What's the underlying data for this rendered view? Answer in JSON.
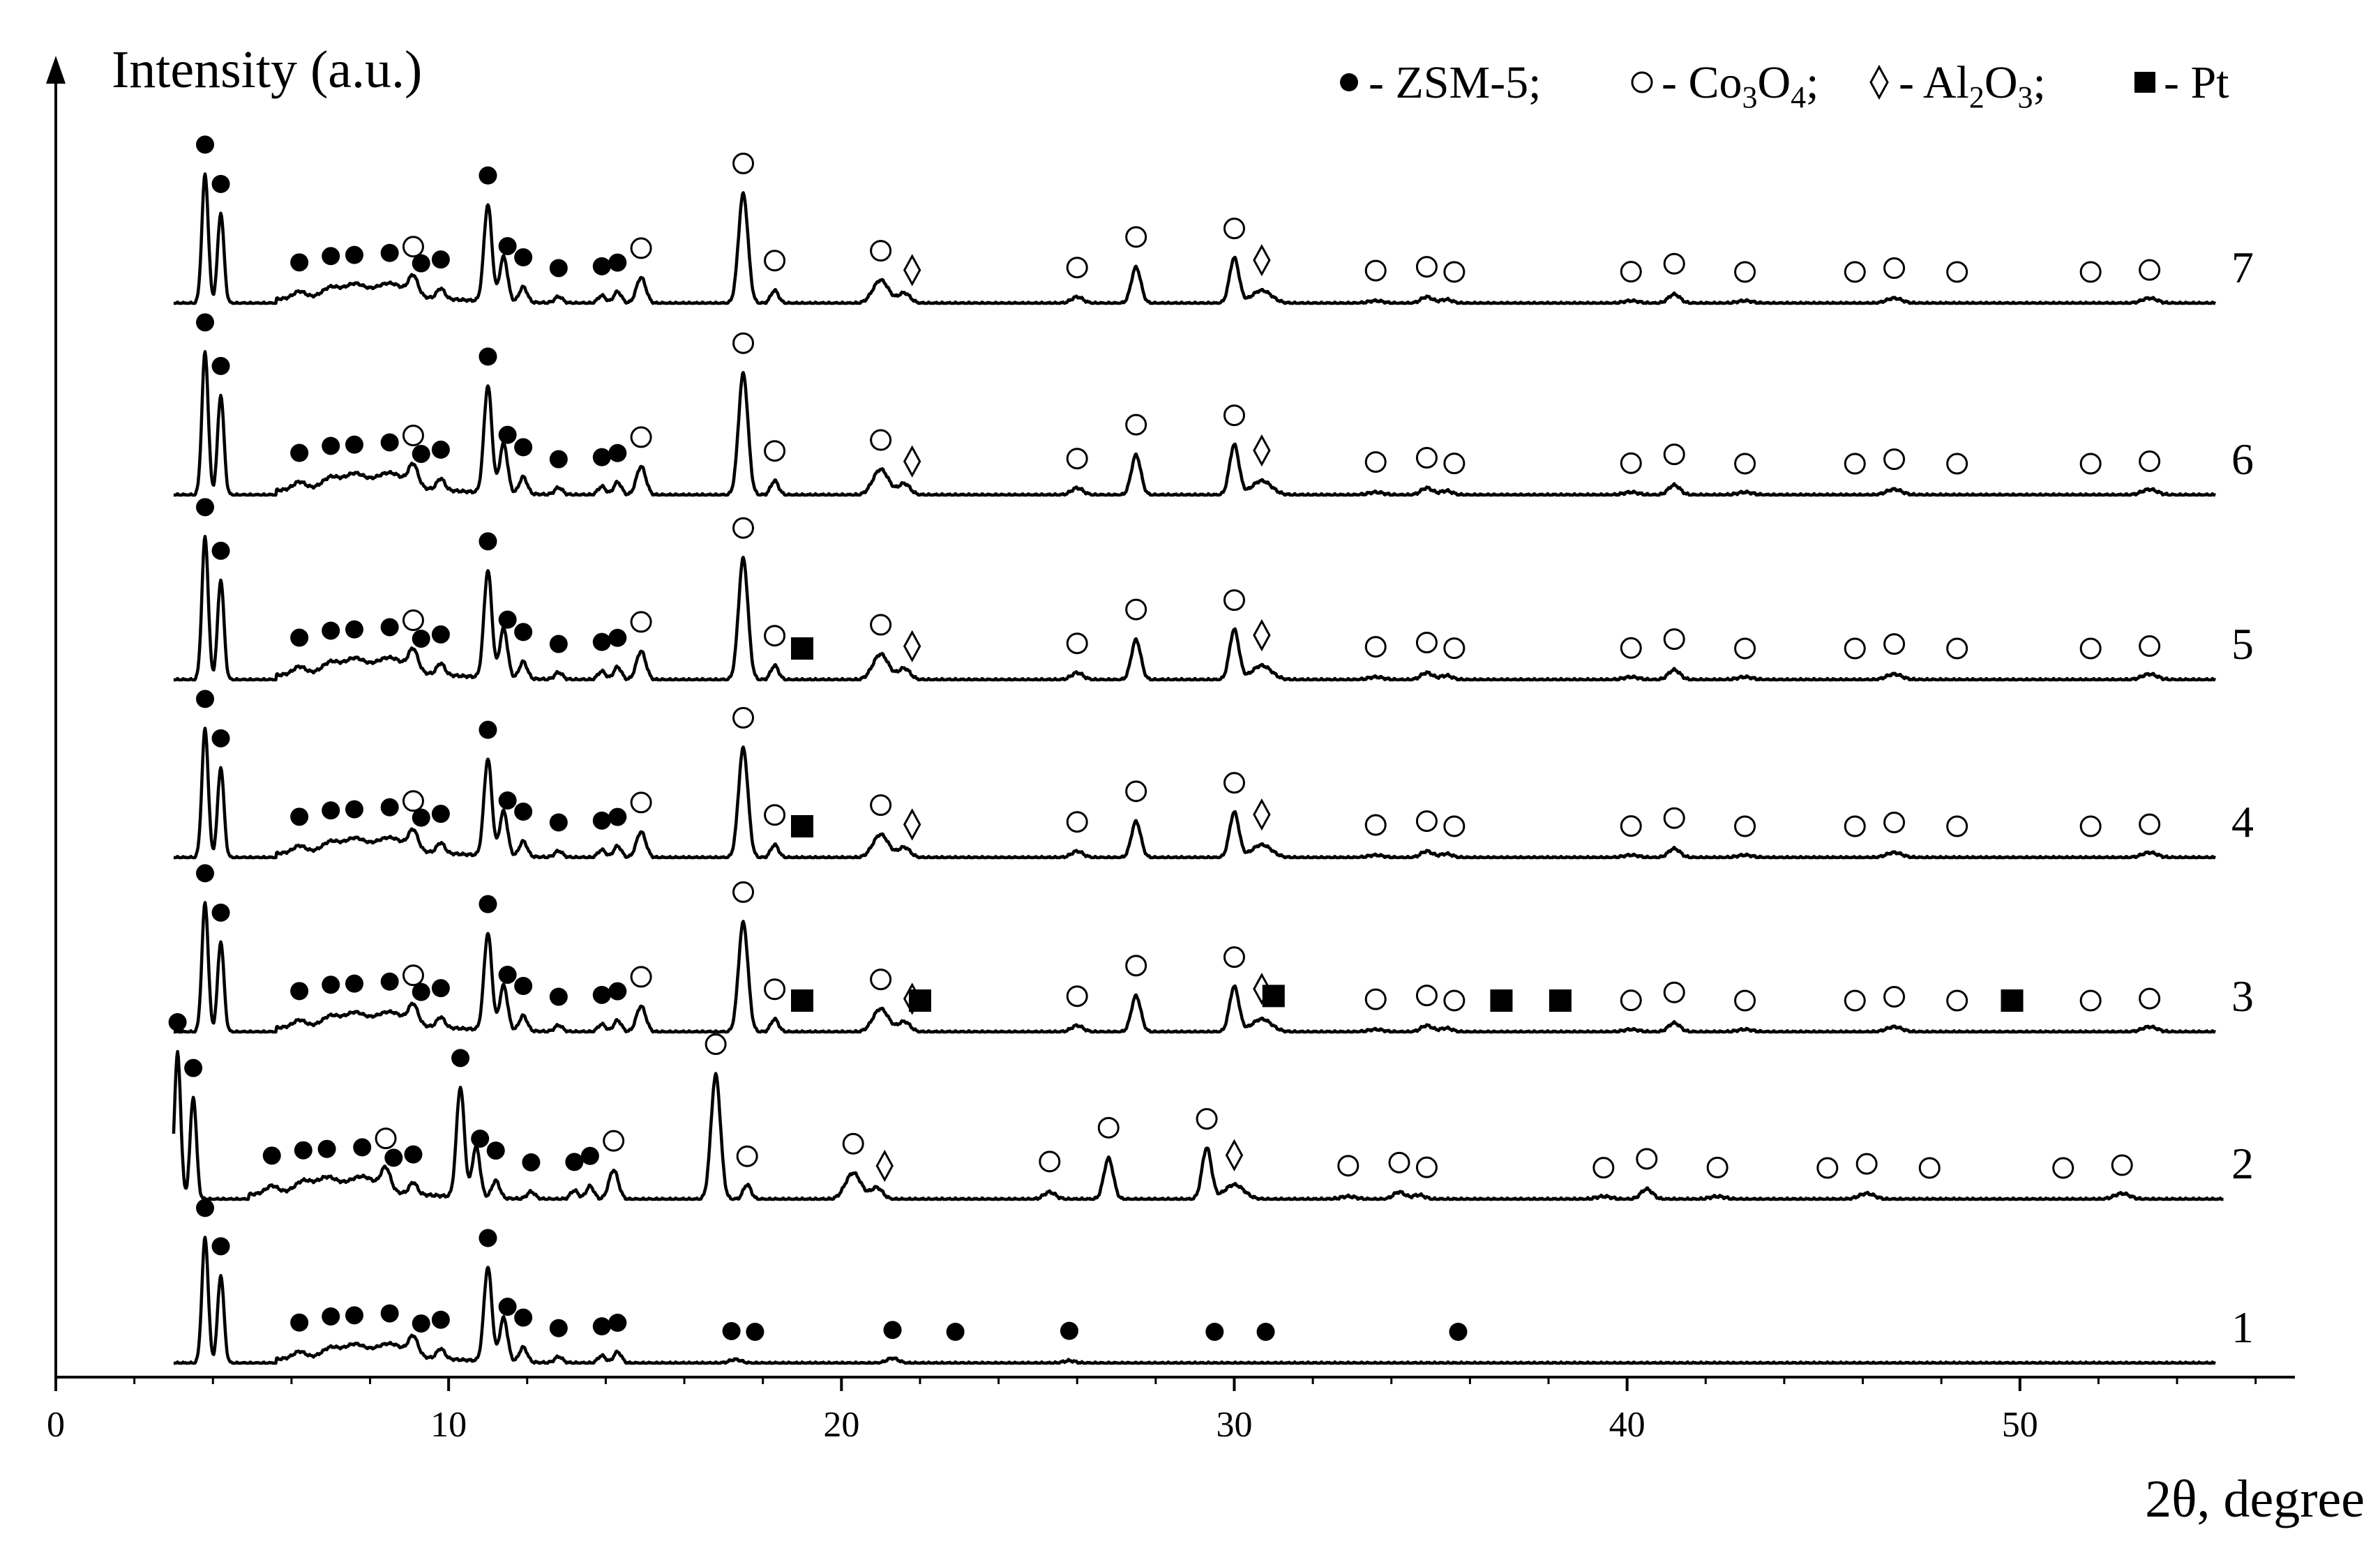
{
  "chart_data": {
    "type": "line",
    "title": "",
    "xlabel": "2θ, degree",
    "ylabel": "Intensity (a.u.)",
    "xlim": [
      0,
      57
    ],
    "x_ticks": [
      0,
      10,
      20,
      30,
      40,
      50
    ],
    "x_tick_labels": [
      "0",
      "10",
      "20",
      "30",
      "40",
      "50"
    ],
    "grid": false,
    "legend": {
      "position": "top-right",
      "entries": [
        {
          "marker": "filled-circle",
          "text": "- ZSM-5;"
        },
        {
          "marker": "open-circle",
          "text": "- Co",
          "sub1": "3",
          "mid": "O",
          "sub2": "4",
          "tail": ";"
        },
        {
          "marker": "diamond",
          "text": "- Al",
          "sub1": "2",
          "mid": "O",
          "sub2": "3",
          "tail": ";"
        },
        {
          "marker": "filled-square",
          "text": "- Pt"
        }
      ]
    },
    "series": [
      {
        "name": "1",
        "label": "1",
        "order": 1,
        "baseline": 1
      },
      {
        "name": "2",
        "label": "2",
        "order": 2,
        "baseline": 2
      },
      {
        "name": "3",
        "label": "3",
        "order": 3,
        "baseline": 3
      },
      {
        "name": "4",
        "label": "4",
        "order": 4,
        "baseline": 4
      },
      {
        "name": "5",
        "label": "5",
        "order": 5,
        "baseline": 5
      },
      {
        "name": "6",
        "label": "6",
        "order": 6,
        "baseline": 6
      },
      {
        "name": "7",
        "label": "7",
        "order": 7,
        "baseline": 7
      }
    ],
    "phase_markers": {
      "ZSM-5": [
        3.8,
        4.2,
        6.2,
        7.0,
        7.6,
        8.5,
        9.3,
        9.8,
        11.0,
        11.5,
        11.9,
        12.8,
        13.9,
        14.3
      ],
      "Co3O4": [
        9.1,
        14.9,
        17.5,
        18.3,
        21.0,
        26.0,
        27.5,
        30.0,
        33.6,
        34.9,
        35.6,
        40.1,
        41.2,
        43.0,
        45.8,
        46.8,
        48.4,
        51.8,
        53.3
      ],
      "Al2O3": [
        21.8,
        30.7
      ],
      "Pt": [
        19.0,
        22.0,
        31.0,
        36.8,
        38.3,
        49.8
      ]
    }
  }
}
